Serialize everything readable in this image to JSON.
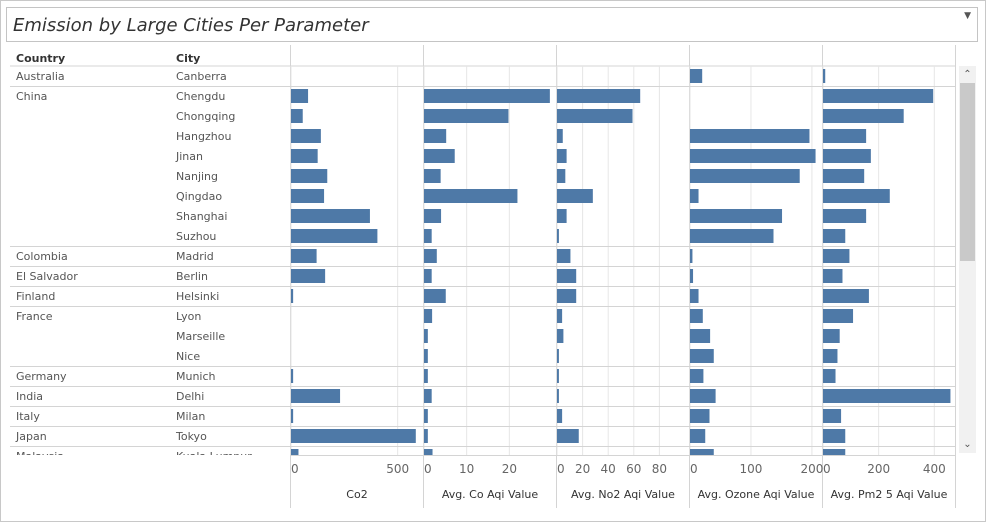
{
  "title": "Emission by Large Cities Per Parameter",
  "title_dropdown_icon": "caret-down-icon",
  "headers": {
    "country": "Country",
    "city": "City"
  },
  "colors": {
    "bar": "#4e79a7",
    "grid": "#e6e6e6",
    "rule": "#d4d4d4"
  },
  "scrollbar": {
    "up_icon": "chevron-up-icon",
    "down_icon": "chevron-down-icon"
  },
  "chart_data": {
    "type": "bar",
    "orientation": "horizontal",
    "title": "Emission by Large Cities Per Parameter",
    "rows": [
      {
        "country": "Australia",
        "city": "Canberra"
      },
      {
        "country": "China",
        "city": "Chengdu"
      },
      {
        "country": "",
        "city": "Chongqing"
      },
      {
        "country": "",
        "city": "Hangzhou"
      },
      {
        "country": "",
        "city": "Jinan"
      },
      {
        "country": "",
        "city": "Nanjing"
      },
      {
        "country": "",
        "city": "Qingdao"
      },
      {
        "country": "",
        "city": "Shanghai"
      },
      {
        "country": "",
        "city": "Suzhou"
      },
      {
        "country": "Colombia",
        "city": "Madrid"
      },
      {
        "country": "El Salvador",
        "city": "Berlin"
      },
      {
        "country": "Finland",
        "city": "Helsinki"
      },
      {
        "country": "France",
        "city": "Lyon"
      },
      {
        "country": "",
        "city": "Marseille"
      },
      {
        "country": "",
        "city": "Nice"
      },
      {
        "country": "Germany",
        "city": "Munich"
      },
      {
        "country": "India",
        "city": "Delhi"
      },
      {
        "country": "Italy",
        "city": "Milan"
      },
      {
        "country": "Japan",
        "city": "Tokyo"
      }
    ],
    "series": [
      {
        "name": "Co2",
        "axis_max": 600,
        "ticks": [
          0,
          500
        ],
        "values": [
          null,
          80,
          55,
          140,
          125,
          170,
          155,
          370,
          405,
          120,
          160,
          10,
          null,
          null,
          null,
          10,
          230,
          10,
          585
        ]
      },
      {
        "name": "Avg. Co Aqi Value",
        "axis_max": 30,
        "ticks": [
          0,
          10,
          20
        ],
        "values": [
          null,
          29.5,
          19.8,
          5.2,
          7.2,
          3.9,
          21.9,
          4.0,
          1.8,
          3.0,
          1.8,
          5.1,
          1.9,
          0.9,
          0.9,
          0.9,
          1.8,
          0.9,
          0.9
        ]
      },
      {
        "name": "Avg. No2 Aqi Value",
        "axis_max": 100,
        "ticks": [
          0,
          20,
          40,
          60,
          80
        ],
        "values": [
          null,
          65,
          59,
          4.5,
          7.5,
          6.5,
          28,
          7.5,
          1.5,
          10.5,
          15,
          15,
          4,
          5,
          1.5,
          1.5,
          1.5,
          4,
          17
        ]
      },
      {
        "name": "Avg. Ozone Aqi Value",
        "axis_max": 210,
        "ticks": [
          0,
          100,
          200
        ],
        "values": [
          20,
          null,
          null,
          196,
          206,
          180,
          14,
          151,
          137,
          4,
          5,
          14,
          21,
          33,
          39,
          22,
          42,
          32,
          25
        ]
      },
      {
        "name": "Avg. Pm2 5 Aqi Value",
        "axis_max": 460,
        "ticks": [
          0,
          200,
          400
        ],
        "values": [
          8,
          396,
          290,
          155,
          172,
          148,
          240,
          155,
          80,
          95,
          70,
          165,
          108,
          60,
          52,
          45,
          458,
          65,
          80
        ]
      }
    ],
    "partial_row": {
      "country": "Malaysia",
      "city": "Kuala Lumpur",
      "values": [
        35,
        2,
        0,
        39,
        80
      ]
    },
    "grid": true,
    "legend": "none"
  }
}
